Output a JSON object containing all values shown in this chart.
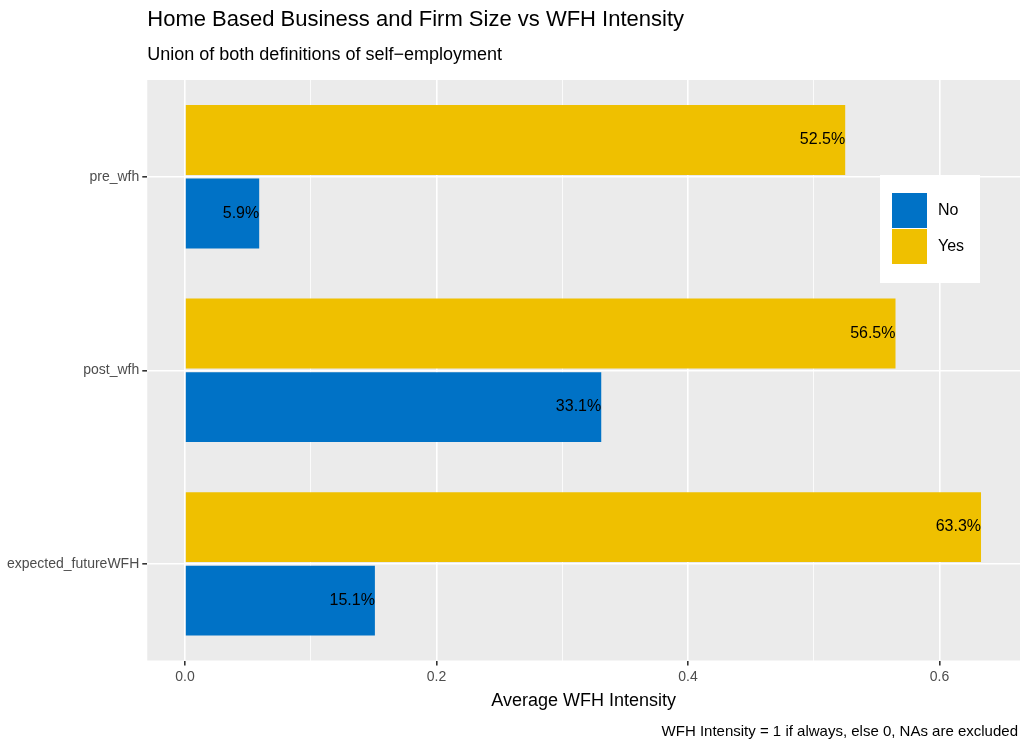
{
  "chart_data": {
    "type": "bar",
    "orientation": "horizontal",
    "title": "Home Based Business and Firm Size vs WFH Intensity",
    "subtitle": "Union of both definitions of self−employment",
    "xlabel": "Average WFH Intensity",
    "annotations": [
      "WFH Intensity = 1 if always, else 0, NAs are excluded"
    ],
    "categories": [
      "pre_wfh",
      "post_wfh",
      "expected_futureWFH"
    ],
    "series": [
      {
        "name": "No",
        "color": "#0072c6",
        "values": [
          0.059,
          0.331,
          0.151
        ],
        "value_labels": [
          "5.9%",
          "33.1%",
          "15.1%"
        ]
      },
      {
        "name": "Yes",
        "color": "#efc000",
        "values": [
          0.525,
          0.565,
          0.633
        ],
        "value_labels": [
          "52.5%",
          "56.5%",
          "63.3%"
        ]
      }
    ],
    "xlim": [
      -0.03,
      0.664
    ],
    "xticks": [
      {
        "value": 0,
        "label": "0.0"
      },
      {
        "value": 0.1,
        "label": null
      },
      {
        "value": 0.2,
        "label": "0.2"
      },
      {
        "value": 0.3,
        "label": null
      },
      {
        "value": 0.4,
        "label": "0.4"
      },
      {
        "value": 0.5,
        "label": null
      },
      {
        "value": 0.6,
        "label": "0.6"
      }
    ],
    "grid": true,
    "legend": "top right"
  }
}
